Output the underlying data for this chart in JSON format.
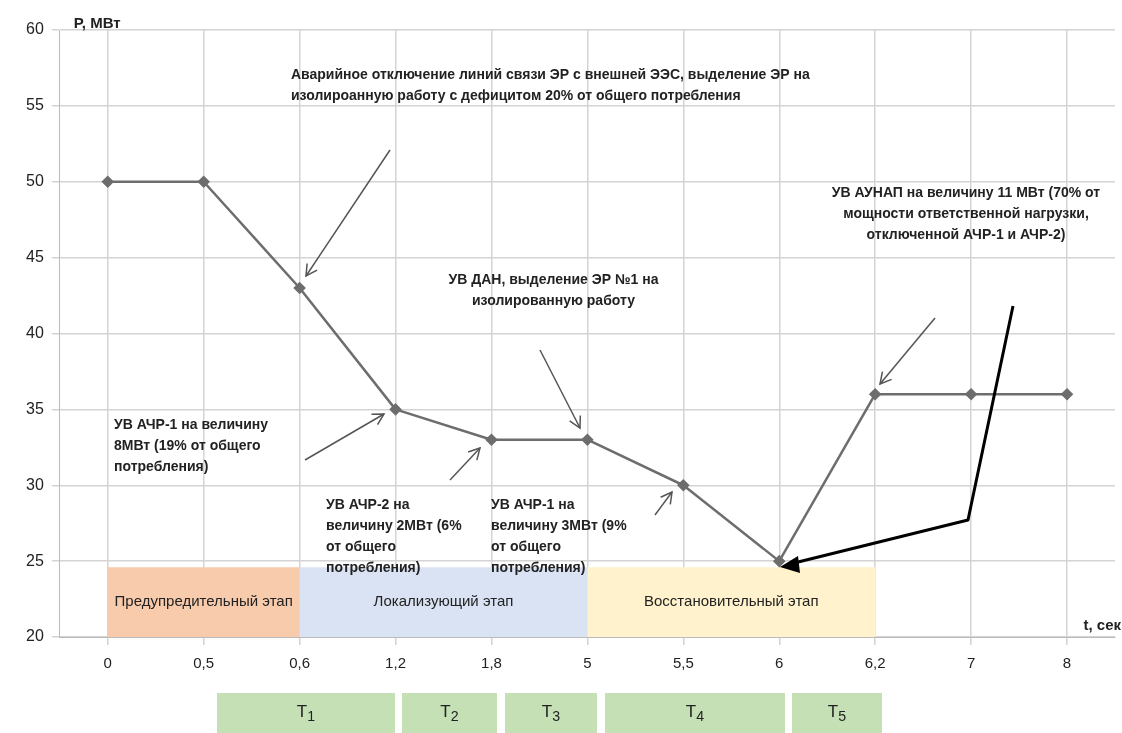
{
  "chart_data": {
    "type": "line",
    "xlabel": "t, сек",
    "ylabel": "P, МВт",
    "categories": [
      "0",
      "0,5",
      "0,6",
      "1,2",
      "1,8",
      "5",
      "5,5",
      "6",
      "6,2",
      "7",
      "8"
    ],
    "series": [
      {
        "color": "#6d6d6d",
        "values": [
          50,
          50,
          43,
          35,
          33,
          33,
          30,
          25,
          36,
          36,
          36
        ]
      }
    ],
    "ylim": [
      20,
      60
    ],
    "yticks": [
      20,
      25,
      30,
      35,
      40,
      45,
      50,
      55,
      60
    ],
    "grid": true,
    "legend": false,
    "marker": "diamond",
    "line_style": "solid",
    "bands": [
      {
        "axis": "x",
        "from": "0",
        "to": "0,6",
        "label": "Предупредительный этап",
        "color": "#f8cbad"
      },
      {
        "axis": "x",
        "from": "0,6",
        "to": "5",
        "label": "Локализующий этап",
        "color": "#dae3f3"
      },
      {
        "axis": "x",
        "from": "5",
        "to": "6,2",
        "label": "Восстановительный этап",
        "color": "#fff2cc"
      }
    ],
    "annotations": [
      "Аварийное отключение линий связи ЭР с внешней ЭЭС, выделение ЭР на изолироанную работу с дефицитом 20% от общего потребления",
      "УВ АЧР-1 на величину 8МВт (19% от общего потребления)",
      "УВ АЧР-2 на величину 2МВт (6% от общего потребления)",
      "УВ АЧР-1 на величину 3МВт (9% от общего потребления)",
      "УВ ДАН, выделение ЭР №1 на изолированную работу",
      "УВ АУНАП на величину 11 МВт (70% от мощности ответственной нагрузки, отключенной АЧР-1 и АЧР-2)",
      "T$_{1}$",
      "T$_{2}$",
      "T$_{3}$",
      "T$_{4}$",
      "T$_{5}$"
    ]
  }
}
